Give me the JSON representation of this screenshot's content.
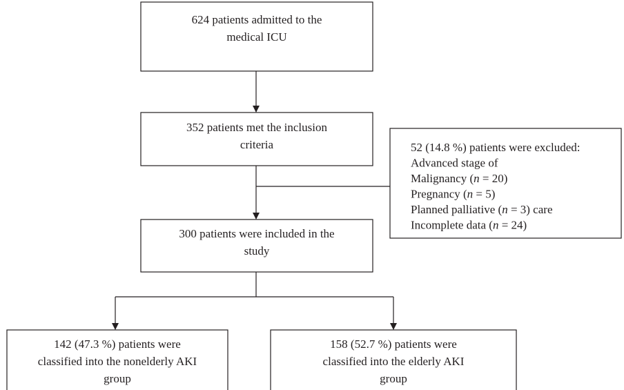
{
  "nodes": [
    {
      "lines": [
        "624 patients admitted to the",
        "medical ICU"
      ]
    },
    {
      "lines": [
        "352 patients met the inclusion",
        "criteria"
      ]
    },
    {
      "lines": [
        "300 patients were included in the",
        "study"
      ]
    },
    {
      "lines": [
        "142 (47.3 %) patients were",
        "classified into the nonelderly AKI",
        "group"
      ]
    },
    {
      "lines": [
        "158 (52.7 %) patients were",
        "classified into the elderly AKI",
        "group"
      ]
    }
  ],
  "exclusion": {
    "lines": [
      "52 (14.8 %) patients were excluded:",
      "Advanced stage of",
      "Malignancy (n = 20)",
      "Pregnancy (n = 5)",
      "Planned palliative (n = 3) care",
      "Incomplete data (n = 24)"
    ]
  }
}
